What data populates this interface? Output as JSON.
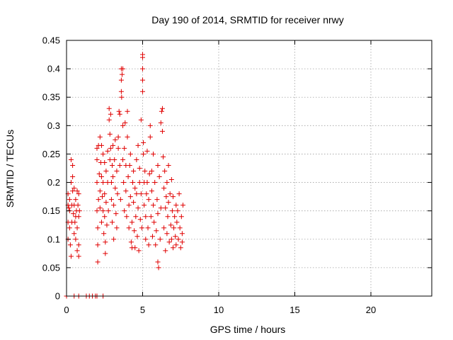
{
  "chart_data": {
    "type": "scatter",
    "title": "Day 190 of 2014, SRMTID for receiver nrwy",
    "xlabel": "GPS time / hours",
    "ylabel": "SRMTID / TECUs",
    "xlim": [
      0,
      24
    ],
    "ylim": [
      0,
      0.45
    ],
    "x_ticks": [
      0,
      5,
      10,
      15,
      20
    ],
    "x_tick_labels": [
      "0",
      "5",
      "10",
      "15",
      "20"
    ],
    "y_ticks": [
      0,
      0.05,
      0.1,
      0.15,
      0.2,
      0.25,
      0.3,
      0.35,
      0.4,
      0.45
    ],
    "y_tick_labels": [
      "0",
      "0.05",
      "0.1",
      "0.15",
      "0.2",
      "0.25",
      "0.3",
      "0.35",
      "0.4",
      "0.45"
    ],
    "grid": true,
    "marker": "+",
    "series": [
      {
        "color": "#e00000",
        "points": [
          [
            0.0,
            0.0
          ],
          [
            0.1,
            0.16
          ],
          [
            0.1,
            0.13
          ],
          [
            0.1,
            0.1
          ],
          [
            0.1,
            0.18
          ],
          [
            0.15,
            0.155
          ],
          [
            0.2,
            0.15
          ],
          [
            0.2,
            0.12
          ],
          [
            0.2,
            0.17
          ],
          [
            0.25,
            0.09
          ],
          [
            0.3,
            0.24
          ],
          [
            0.3,
            0.2
          ],
          [
            0.3,
            0.07
          ],
          [
            0.35,
            0.16
          ],
          [
            0.35,
            0.13
          ],
          [
            0.4,
            0.23
          ],
          [
            0.4,
            0.21
          ],
          [
            0.4,
            0.185
          ],
          [
            0.45,
            0.145
          ],
          [
            0.5,
            0.11
          ],
          [
            0.5,
            0.19
          ],
          [
            0.5,
            0.16
          ],
          [
            0.55,
            0.13
          ],
          [
            0.6,
            0.17
          ],
          [
            0.6,
            0.14
          ],
          [
            0.6,
            0.1
          ],
          [
            0.65,
            0.15
          ],
          [
            0.7,
            0.08
          ],
          [
            0.7,
            0.12
          ],
          [
            0.7,
            0.185
          ],
          [
            0.75,
            0.16
          ],
          [
            0.8,
            0.14
          ],
          [
            0.8,
            0.09
          ],
          [
            0.8,
            0.07
          ],
          [
            0.8,
            0.18
          ],
          [
            0.85,
            0.15
          ],
          [
            0.5,
            0.0
          ],
          [
            0.8,
            0.0
          ],
          [
            1.3,
            0.0
          ],
          [
            1.5,
            0.0
          ],
          [
            1.7,
            0.0
          ],
          [
            1.9,
            0.0
          ],
          [
            2.0,
            0.0
          ],
          [
            2.4,
            0.0
          ],
          [
            2.0,
            0.26
          ],
          [
            2.0,
            0.24
          ],
          [
            2.0,
            0.2
          ],
          [
            2.0,
            0.15
          ],
          [
            2.05,
            0.12
          ],
          [
            2.05,
            0.09
          ],
          [
            2.05,
            0.06
          ],
          [
            2.1,
            0.265
          ],
          [
            2.1,
            0.17
          ],
          [
            2.15,
            0.215
          ],
          [
            2.2,
            0.28
          ],
          [
            2.2,
            0.185
          ],
          [
            2.2,
            0.155
          ],
          [
            2.25,
            0.235
          ],
          [
            2.3,
            0.265
          ],
          [
            2.3,
            0.21
          ],
          [
            2.3,
            0.13
          ],
          [
            2.35,
            0.175
          ],
          [
            2.4,
            0.25
          ],
          [
            2.4,
            0.2
          ],
          [
            2.4,
            0.15
          ],
          [
            2.45,
            0.11
          ],
          [
            2.5,
            0.235
          ],
          [
            2.5,
            0.18
          ],
          [
            2.5,
            0.14
          ],
          [
            2.55,
            0.095
          ],
          [
            2.55,
            0.075
          ],
          [
            2.6,
            0.22
          ],
          [
            2.6,
            0.165
          ],
          [
            2.65,
            0.125
          ],
          [
            2.7,
            0.255
          ],
          [
            2.7,
            0.2
          ],
          [
            2.75,
            0.15
          ],
          [
            2.8,
            0.33
          ],
          [
            2.8,
            0.31
          ],
          [
            2.85,
            0.285
          ],
          [
            2.85,
            0.24
          ],
          [
            2.9,
            0.32
          ],
          [
            2.9,
            0.26
          ],
          [
            2.95,
            0.2
          ],
          [
            2.95,
            0.17
          ],
          [
            3.0,
            0.23
          ],
          [
            3.0,
            0.13
          ],
          [
            3.05,
            0.265
          ],
          [
            3.05,
            0.21
          ],
          [
            3.1,
            0.16
          ],
          [
            3.1,
            0.1
          ],
          [
            3.15,
            0.24
          ],
          [
            3.2,
            0.275
          ],
          [
            3.2,
            0.19
          ],
          [
            3.25,
            0.145
          ],
          [
            3.3,
            0.22
          ],
          [
            3.3,
            0.12
          ],
          [
            3.35,
            0.18
          ],
          [
            3.4,
            0.26
          ],
          [
            3.4,
            0.28
          ],
          [
            3.45,
            0.325
          ],
          [
            3.5,
            0.32
          ],
          [
            3.5,
            0.23
          ],
          [
            3.55,
            0.17
          ],
          [
            3.6,
            0.4
          ],
          [
            3.6,
            0.38
          ],
          [
            3.6,
            0.36
          ],
          [
            3.62,
            0.35
          ],
          [
            3.65,
            0.39
          ],
          [
            3.7,
            0.4
          ],
          [
            3.7,
            0.3
          ],
          [
            3.7,
            0.24
          ],
          [
            3.75,
            0.2
          ],
          [
            3.8,
            0.26
          ],
          [
            3.8,
            0.15
          ],
          [
            3.85,
            0.305
          ],
          [
            3.9,
            0.23
          ],
          [
            3.9,
            0.185
          ],
          [
            3.95,
            0.14
          ],
          [
            4.0,
            0.325
          ],
          [
            4.0,
            0.28
          ],
          [
            4.05,
            0.21
          ],
          [
            4.1,
            0.16
          ],
          [
            4.1,
            0.12
          ],
          [
            4.15,
            0.23
          ],
          [
            4.2,
            0.25
          ],
          [
            4.2,
            0.175
          ],
          [
            4.25,
            0.095
          ],
          [
            4.3,
            0.085
          ],
          [
            4.3,
            0.13
          ],
          [
            4.35,
            0.2
          ],
          [
            4.4,
            0.22
          ],
          [
            4.4,
            0.165
          ],
          [
            4.45,
            0.115
          ],
          [
            4.5,
            0.19
          ],
          [
            4.5,
            0.085
          ],
          [
            4.55,
            0.14
          ],
          [
            4.6,
            0.24
          ],
          [
            4.6,
            0.18
          ],
          [
            4.65,
            0.105
          ],
          [
            4.7,
            0.265
          ],
          [
            4.7,
            0.155
          ],
          [
            4.75,
            0.08
          ],
          [
            4.8,
            0.2
          ],
          [
            4.8,
            0.225
          ],
          [
            4.85,
            0.135
          ],
          [
            4.9,
            0.31
          ],
          [
            4.9,
            0.18
          ],
          [
            4.95,
            0.12
          ],
          [
            5.0,
            0.425
          ],
          [
            5.0,
            0.42
          ],
          [
            5.0,
            0.4
          ],
          [
            5.0,
            0.38
          ],
          [
            5.0,
            0.36
          ],
          [
            5.05,
            0.27
          ],
          [
            5.05,
            0.25
          ],
          [
            5.1,
            0.2
          ],
          [
            5.1,
            0.16
          ],
          [
            5.15,
            0.22
          ],
          [
            5.2,
            0.1
          ],
          [
            5.2,
            0.14
          ],
          [
            5.25,
            0.18
          ],
          [
            5.3,
            0.255
          ],
          [
            5.3,
            0.2
          ],
          [
            5.35,
            0.12
          ],
          [
            5.4,
            0.17
          ],
          [
            5.4,
            0.09
          ],
          [
            5.45,
            0.215
          ],
          [
            5.5,
            0.3
          ],
          [
            5.5,
            0.28
          ],
          [
            5.55,
            0.14
          ],
          [
            5.6,
            0.22
          ],
          [
            5.6,
            0.185
          ],
          [
            5.65,
            0.105
          ],
          [
            5.7,
            0.25
          ],
          [
            5.7,
            0.16
          ],
          [
            5.75,
            0.13
          ],
          [
            5.8,
            0.2
          ],
          [
            5.85,
            0.09
          ],
          [
            5.9,
            0.115
          ],
          [
            5.95,
            0.17
          ],
          [
            6.0,
            0.23
          ],
          [
            6.0,
            0.145
          ],
          [
            6.0,
            0.06
          ],
          [
            6.05,
            0.05
          ],
          [
            6.1,
            0.21
          ],
          [
            6.15,
            0.1
          ],
          [
            6.2,
            0.155
          ],
          [
            6.2,
            0.305
          ],
          [
            6.25,
            0.325
          ],
          [
            6.3,
            0.33
          ],
          [
            6.3,
            0.29
          ],
          [
            6.35,
            0.245
          ],
          [
            6.4,
            0.19
          ],
          [
            6.4,
            0.12
          ],
          [
            6.45,
            0.22
          ],
          [
            6.5,
            0.155
          ],
          [
            6.5,
            0.08
          ],
          [
            6.55,
            0.175
          ],
          [
            6.6,
            0.2
          ],
          [
            6.6,
            0.11
          ],
          [
            6.65,
            0.14
          ],
          [
            6.7,
            0.23
          ],
          [
            6.7,
            0.165
          ],
          [
            6.75,
            0.095
          ],
          [
            6.8,
            0.18
          ],
          [
            6.85,
            0.125
          ],
          [
            6.9,
            0.205
          ],
          [
            6.9,
            0.1
          ],
          [
            6.95,
            0.15
          ],
          [
            7.0,
            0.085
          ],
          [
            7.0,
            0.175
          ],
          [
            7.05,
            0.12
          ],
          [
            7.1,
            0.14
          ],
          [
            7.15,
            0.105
          ],
          [
            7.2,
            0.16
          ],
          [
            7.2,
            0.09
          ],
          [
            7.25,
            0.13
          ],
          [
            7.3,
            0.15
          ],
          [
            7.35,
            0.1
          ],
          [
            7.4,
            0.18
          ],
          [
            7.45,
            0.12
          ],
          [
            7.5,
            0.085
          ],
          [
            7.55,
            0.14
          ],
          [
            7.6,
            0.095
          ],
          [
            7.6,
            0.11
          ],
          [
            7.65,
            0.16
          ]
        ]
      }
    ]
  }
}
